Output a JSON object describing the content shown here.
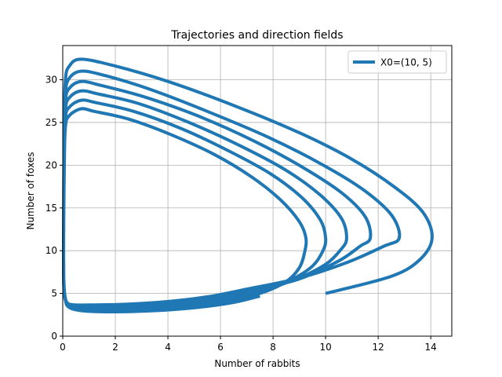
{
  "chart_data": {
    "type": "line",
    "title": "Trajectories and direction fields",
    "xlabel": "Number of rabbits",
    "ylabel": "Number of foxes",
    "xlim": [
      0,
      14.8
    ],
    "ylim": [
      0,
      34
    ],
    "x_ticks": [
      0,
      2,
      4,
      6,
      8,
      10,
      12,
      14
    ],
    "y_ticks": [
      0,
      5,
      10,
      15,
      20,
      25,
      30
    ],
    "grid": true,
    "legend_position": "top-right",
    "colors": {
      "series": "#1f77b4",
      "grid": "#b0b0b0"
    },
    "series": [
      {
        "name": "X0=(10, 5)",
        "points": [
          [
            10.0,
            5.0
          ],
          [
            12.5,
            7.0
          ],
          [
            13.6,
            9.0
          ],
          [
            14.05,
            11.5
          ],
          [
            13.7,
            14.5
          ],
          [
            12.6,
            17.5
          ],
          [
            11.0,
            20.7
          ],
          [
            9.0,
            23.8
          ],
          [
            6.5,
            27.0
          ],
          [
            4.0,
            29.8
          ],
          [
            2.0,
            31.6
          ],
          [
            0.7,
            32.4
          ],
          [
            0.25,
            31.6
          ],
          [
            0.1,
            30.0
          ],
          [
            0.06,
            25.0
          ],
          [
            0.04,
            18.0
          ],
          [
            0.03,
            12.0
          ],
          [
            0.03,
            8.0
          ],
          [
            0.05,
            5.5
          ],
          [
            0.1,
            4.2
          ],
          [
            0.3,
            3.7
          ],
          [
            1.0,
            3.65
          ],
          [
            2.5,
            3.75
          ],
          [
            4.0,
            4.05
          ],
          [
            5.5,
            4.6
          ],
          [
            7.0,
            5.5
          ],
          [
            9.0,
            6.8
          ],
          [
            10.8,
            8.6
          ],
          [
            12.2,
            10.5
          ],
          [
            12.8,
            11.5
          ],
          [
            12.5,
            14.2
          ],
          [
            11.4,
            17.2
          ],
          [
            9.8,
            20.2
          ],
          [
            7.8,
            23.3
          ],
          [
            5.5,
            26.3
          ],
          [
            3.3,
            28.9
          ],
          [
            1.6,
            30.5
          ],
          [
            0.7,
            31.0
          ],
          [
            0.25,
            30.2
          ],
          [
            0.1,
            28.5
          ],
          [
            0.06,
            24.0
          ],
          [
            0.04,
            17.0
          ],
          [
            0.03,
            11.0
          ],
          [
            0.04,
            7.0
          ],
          [
            0.07,
            5.0
          ],
          [
            0.15,
            4.0
          ],
          [
            0.4,
            3.55
          ],
          [
            1.2,
            3.45
          ],
          [
            2.8,
            3.6
          ],
          [
            4.3,
            3.95
          ],
          [
            5.8,
            4.5
          ],
          [
            7.3,
            5.4
          ],
          [
            9.0,
            6.7
          ],
          [
            10.5,
            8.8
          ],
          [
            11.3,
            10.5
          ],
          [
            11.7,
            11.5
          ],
          [
            11.5,
            14.0
          ],
          [
            10.6,
            16.8
          ],
          [
            9.1,
            19.8
          ],
          [
            7.3,
            22.8
          ],
          [
            5.2,
            25.7
          ],
          [
            3.1,
            28.0
          ],
          [
            1.5,
            29.3
          ],
          [
            0.7,
            29.8
          ],
          [
            0.25,
            29.0
          ],
          [
            0.1,
            27.5
          ],
          [
            0.06,
            23.0
          ],
          [
            0.04,
            16.0
          ],
          [
            0.03,
            10.5
          ],
          [
            0.04,
            6.8
          ],
          [
            0.08,
            4.8
          ],
          [
            0.18,
            3.85
          ],
          [
            0.5,
            3.4
          ],
          [
            1.4,
            3.3
          ],
          [
            3.0,
            3.45
          ],
          [
            4.5,
            3.8
          ],
          [
            6.0,
            4.35
          ],
          [
            7.5,
            5.3
          ],
          [
            8.9,
            6.7
          ],
          [
            10.0,
            8.4
          ],
          [
            10.6,
            10.2
          ],
          [
            10.8,
            11.5
          ],
          [
            10.6,
            13.8
          ],
          [
            9.8,
            16.5
          ],
          [
            8.5,
            19.4
          ],
          [
            6.8,
            22.2
          ],
          [
            4.8,
            25.0
          ],
          [
            2.9,
            27.2
          ],
          [
            1.4,
            28.3
          ],
          [
            0.7,
            28.7
          ],
          [
            0.25,
            27.9
          ],
          [
            0.1,
            26.5
          ],
          [
            0.06,
            22.0
          ],
          [
            0.04,
            15.5
          ],
          [
            0.03,
            10.0
          ],
          [
            0.04,
            6.5
          ],
          [
            0.09,
            4.6
          ],
          [
            0.2,
            3.65
          ],
          [
            0.6,
            3.25
          ],
          [
            1.6,
            3.15
          ],
          [
            3.2,
            3.3
          ],
          [
            4.7,
            3.65
          ],
          [
            6.2,
            4.25
          ],
          [
            7.6,
            5.2
          ],
          [
            8.7,
            6.6
          ],
          [
            9.5,
            8.2
          ],
          [
            9.9,
            10.0
          ],
          [
            10.0,
            11.5
          ],
          [
            9.8,
            13.6
          ],
          [
            9.1,
            16.2
          ],
          [
            7.9,
            19.0
          ],
          [
            6.3,
            21.7
          ],
          [
            4.5,
            24.3
          ],
          [
            2.7,
            26.3
          ],
          [
            1.3,
            27.3
          ],
          [
            0.7,
            27.6
          ],
          [
            0.25,
            26.8
          ],
          [
            0.1,
            25.5
          ],
          [
            0.06,
            21.0
          ],
          [
            0.04,
            15.0
          ],
          [
            0.03,
            9.5
          ],
          [
            0.04,
            6.2
          ],
          [
            0.1,
            4.4
          ],
          [
            0.22,
            3.5
          ],
          [
            0.7,
            3.1
          ],
          [
            1.8,
            3.0
          ],
          [
            3.4,
            3.15
          ],
          [
            4.9,
            3.5
          ],
          [
            6.3,
            4.1
          ],
          [
            7.6,
            5.1
          ],
          [
            8.5,
            6.4
          ],
          [
            9.0,
            8.0
          ],
          [
            9.2,
            9.8
          ],
          [
            9.25,
            11.5
          ],
          [
            9.0,
            13.4
          ],
          [
            8.3,
            15.9
          ],
          [
            7.2,
            18.6
          ],
          [
            5.8,
            21.2
          ],
          [
            4.1,
            23.6
          ],
          [
            2.5,
            25.4
          ],
          [
            1.2,
            26.3
          ],
          [
            0.7,
            26.6
          ],
          [
            0.25,
            25.8
          ],
          [
            0.1,
            24.5
          ],
          [
            0.06,
            20.0
          ],
          [
            0.04,
            14.0
          ],
          [
            0.03,
            9.0
          ],
          [
            0.04,
            5.9
          ],
          [
            0.1,
            4.2
          ],
          [
            0.25,
            3.35
          ],
          [
            0.8,
            2.95
          ],
          [
            2.0,
            2.85
          ],
          [
            3.6,
            3.0
          ],
          [
            5.1,
            3.35
          ],
          [
            6.5,
            3.95
          ],
          [
            7.5,
            4.7
          ]
        ]
      }
    ]
  }
}
